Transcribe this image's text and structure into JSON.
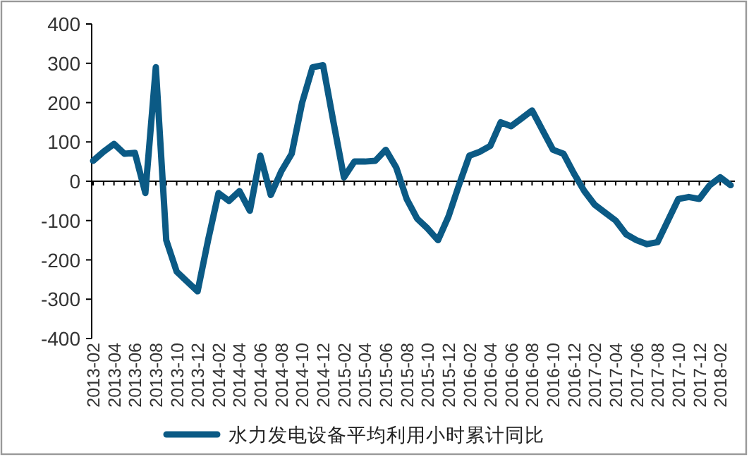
{
  "chart_data": {
    "type": "line",
    "categories": [
      "2013-02",
      null,
      "2013-04",
      null,
      "2013-06",
      null,
      "2013-08",
      null,
      "2013-10",
      null,
      "2013-12",
      null,
      "2014-02",
      null,
      "2014-04",
      null,
      "2014-06",
      null,
      "2014-08",
      null,
      "2014-10",
      null,
      "2014-12",
      null,
      "2015-02",
      null,
      "2015-04",
      null,
      "2015-06",
      null,
      "2015-08",
      null,
      "2015-10",
      null,
      "2015-12",
      null,
      "2016-02",
      null,
      "2016-04",
      null,
      "2016-06",
      null,
      "2016-08",
      null,
      "2016-10",
      null,
      "2016-12",
      null,
      "2017-02",
      null,
      "2017-04",
      null,
      "2017-06",
      null,
      "2017-08",
      null,
      "2017-10",
      null,
      "2017-12",
      null,
      "2018-02",
      null
    ],
    "series": [
      {
        "name": "水力发电设备平均利用小时累计同比",
        "color": "#0b5a85",
        "values": [
          52,
          75,
          95,
          70,
          72,
          -30,
          290,
          -150,
          -230,
          -255,
          -280,
          -150,
          -30,
          -50,
          -25,
          -75,
          65,
          -35,
          25,
          70,
          200,
          290,
          295,
          150,
          10,
          50,
          50,
          52,
          80,
          35,
          -45,
          -95,
          -120,
          -150,
          -90,
          -10,
          65,
          75,
          90,
          150,
          140,
          160,
          180,
          130,
          80,
          70,
          20,
          -25,
          -60,
          -80,
          -100,
          -135,
          -150,
          -160,
          -155,
          -100,
          -45,
          -40,
          -45,
          -10,
          10,
          -10
        ]
      }
    ],
    "ylim": [
      -400,
      400
    ],
    "yticks": [
      -400,
      -300,
      -200,
      -100,
      0,
      100,
      200,
      300,
      400
    ],
    "legend": "bottom",
    "marker": "none",
    "line_style": "solid"
  }
}
